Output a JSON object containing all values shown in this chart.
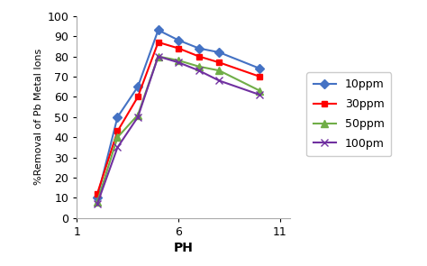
{
  "x_values": [
    2,
    3,
    4,
    5,
    6,
    7,
    8,
    10
  ],
  "series": [
    {
      "label": "10ppm",
      "color": "#4472C4",
      "marker": "D",
      "markersize": 5,
      "y": [
        10,
        50,
        65,
        93,
        88,
        84,
        82,
        74
      ]
    },
    {
      "label": "30ppm",
      "color": "#FF0000",
      "marker": "s",
      "markersize": 5,
      "y": [
        12,
        43,
        60,
        87,
        84,
        80,
        77,
        70
      ]
    },
    {
      "label": "50ppm",
      "color": "#70AD47",
      "marker": "^",
      "markersize": 6,
      "y": [
        8,
        40,
        51,
        80,
        78,
        75,
        73,
        63
      ]
    },
    {
      "label": "100pm",
      "color": "#7030A0",
      "marker": "x",
      "markersize": 6,
      "y": [
        7,
        35,
        50,
        80,
        77,
        73,
        68,
        61
      ]
    }
  ],
  "xlabel": "PH",
  "ylabel": "%Removal of Pb Metal Ions",
  "xlim": [
    1,
    11.5
  ],
  "ylim": [
    0,
    100
  ],
  "xticks": [
    1,
    6,
    11
  ],
  "xtick_labels": [
    "1",
    "6",
    "11"
  ],
  "yticks": [
    0,
    10,
    20,
    30,
    40,
    50,
    60,
    70,
    80,
    90,
    100
  ],
  "background_color": "#ffffff",
  "linewidth": 1.5,
  "fontsize_ticks": 9,
  "fontsize_xlabel": 10,
  "fontsize_ylabel": 8,
  "fontsize_legend": 9
}
